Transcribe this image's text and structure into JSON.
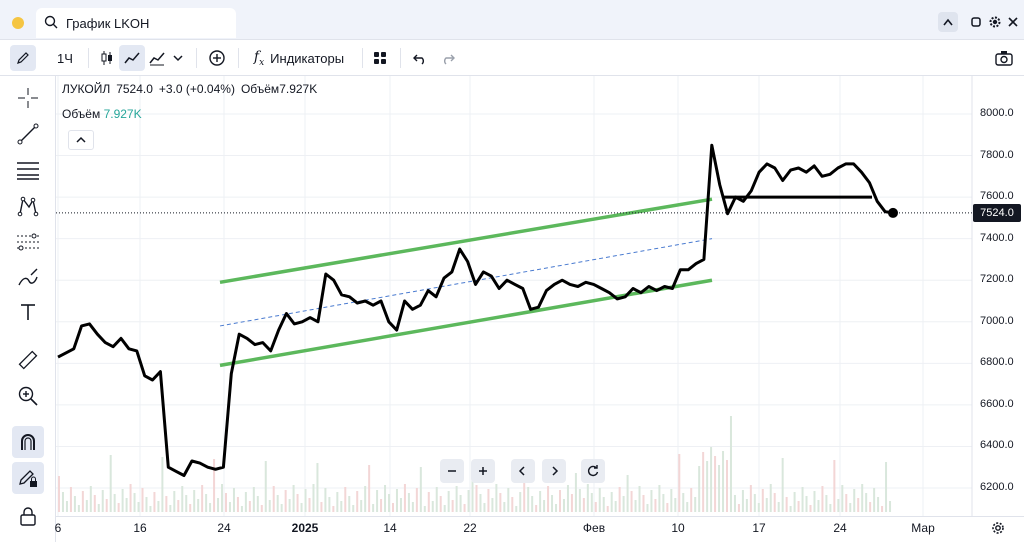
{
  "window": {
    "tab_title": "График LKOH",
    "indicator_dot_color": "#f5c542"
  },
  "toolbar": {
    "interval": "1Ч",
    "indicators_label": "Индикаторы"
  },
  "legend": {
    "symbol": "ЛУКОЙЛ",
    "last": "7524.0",
    "change": "+3.0 (+0.04%)",
    "volume_label": "Объём",
    "volume_value": "7.927K"
  },
  "price_tag": "7524.0",
  "chart_data": {
    "type": "line",
    "title": "",
    "xlabel": "",
    "ylabel": "",
    "ylim": [
      6100,
      8100
    ],
    "y_ticks": [
      "8000.0",
      "7800.0",
      "7600.0",
      "7400.0",
      "7200.0",
      "7000.0",
      "6800.0",
      "6600.0",
      "6400.0",
      "6200.0"
    ],
    "x_ticks": [
      "6",
      "16",
      "24",
      "2025",
      "14",
      "22",
      "Фев",
      "10",
      "17",
      "24",
      "Мар"
    ],
    "series": [
      {
        "name": "",
        "values": [
          6830,
          6850,
          6870,
          6980,
          6990,
          6940,
          6900,
          6880,
          6920,
          6870,
          6860,
          6740,
          6720,
          6760,
          6300,
          6280,
          6260,
          6330,
          6320,
          6300,
          6290,
          6300,
          6750,
          6940,
          6920,
          6890,
          6900,
          6860,
          6960,
          7040,
          6990,
          7000,
          7020,
          7000,
          7230,
          7200,
          7130,
          7120,
          7090,
          7100,
          7080,
          7100,
          7000,
          6960,
          7100,
          7060,
          7080,
          7150,
          7120,
          7210,
          7240,
          7350,
          7290,
          7180,
          7240,
          7220,
          7160,
          7200,
          7180,
          7160,
          7060,
          7070,
          7150,
          7180,
          7200,
          7180,
          7170,
          7190,
          7180,
          7160,
          7140,
          7110,
          7120,
          7160,
          7140,
          7170,
          7150,
          7170,
          7160,
          7250,
          7250,
          7280,
          7300,
          7850,
          7660,
          7520,
          7600,
          7580,
          7630,
          7720,
          7760,
          7740,
          7680,
          7730,
          7740,
          7720,
          7750,
          7700,
          7710,
          7740,
          7760,
          7760,
          7720,
          7670,
          7580,
          7530,
          7524
        ]
      }
    ],
    "drawings": {
      "channel_upper": {
        "from": [
          7190
        ],
        "to": [
          7590
        ]
      },
      "channel_lower": {
        "from": [
          6790
        ],
        "to": [
          7200
        ]
      },
      "channel_mid": {
        "from": [
          6980
        ],
        "to": [
          7400
        ]
      },
      "horizontal_level": 7600
    },
    "colors": {
      "price_line": "#000000",
      "channel": "#5cb85c",
      "channel_mid": "#4a7bd0",
      "volume": "#d9e7dc"
    },
    "grid": true
  },
  "icons": {
    "left_tools": [
      "cursor-cross-icon",
      "trend-line-icon",
      "fib-lines-icon",
      "pattern-icon",
      "projection-icon",
      "brush-icon",
      "text-icon",
      "ruler-icon",
      "zoom-in-icon",
      "magnet-icon",
      "lock-draw-icon",
      "lock-icon"
    ],
    "toolbar": [
      "pencil-icon",
      "candles-icon",
      "line-chart-icon",
      "area-chart-icon",
      "chevron-down-icon",
      "add-compare-icon",
      "fx-icon",
      "layout-icon",
      "undo-icon",
      "redo-icon",
      "camera-icon"
    ],
    "nav": [
      "zoom-out-icon",
      "zoom-in-icon",
      "scroll-left-icon",
      "scroll-right-icon",
      "reset-icon"
    ]
  }
}
